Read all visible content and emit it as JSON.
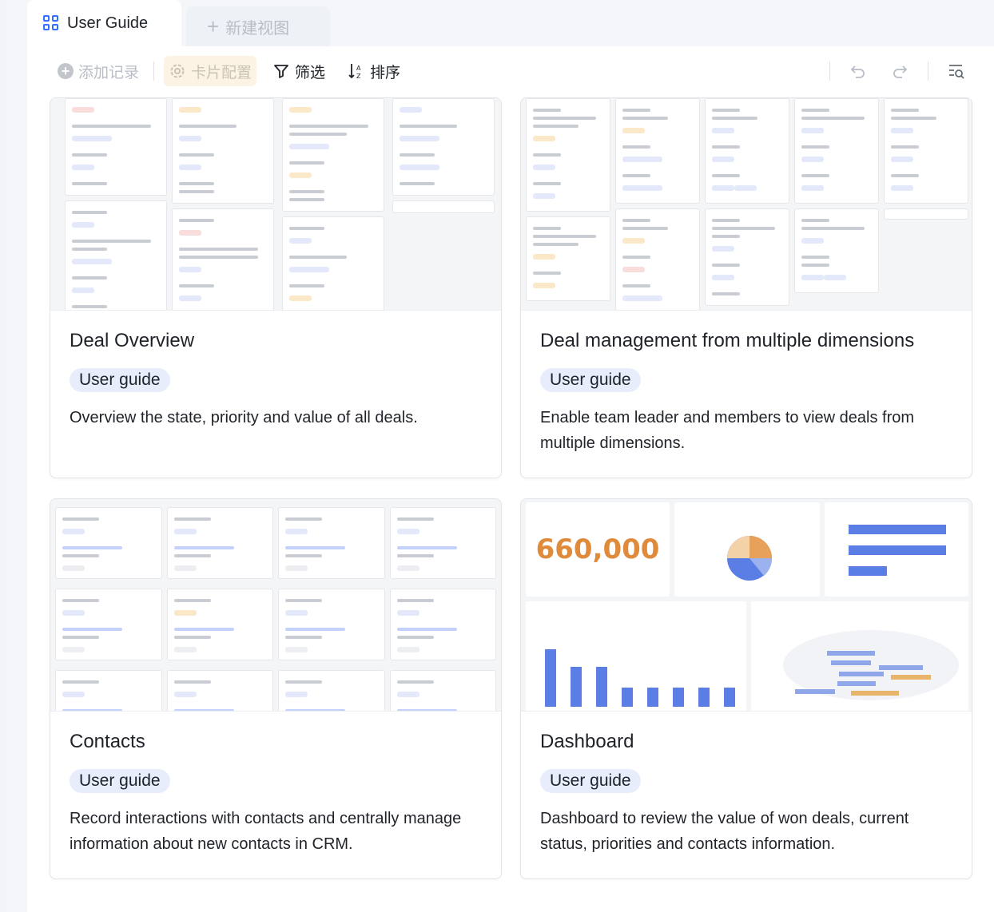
{
  "tabs": {
    "active_label": "User Guide",
    "new_view_label": "新建视图"
  },
  "toolbar": {
    "add_record": "添加记录",
    "card_config": "卡片配置",
    "filter": "筛选",
    "sort": "排序"
  },
  "cards": [
    {
      "title": "Deal Overview",
      "tag": "User guide",
      "description": "Overview the state, priority and value of all deals."
    },
    {
      "title": "Deal management from multiple dimensions",
      "tag": "User guide",
      "description": "Enable team leader and members to view deals from multiple dimensions."
    },
    {
      "title": "Contacts",
      "tag": "User guide",
      "description": "Record interactions with contacts and centrally manage information about new contacts in CRM."
    },
    {
      "title": "Dashboard",
      "tag": "User guide",
      "description": "Dashboard to review the value of won deals, current status, priorities and contacts information."
    }
  ],
  "dashboard_preview": {
    "big_number": "660,000"
  },
  "colors": {
    "accent": "#3370ff",
    "tag_bg": "#e8edfc",
    "number_orange": "#e08a3c"
  }
}
